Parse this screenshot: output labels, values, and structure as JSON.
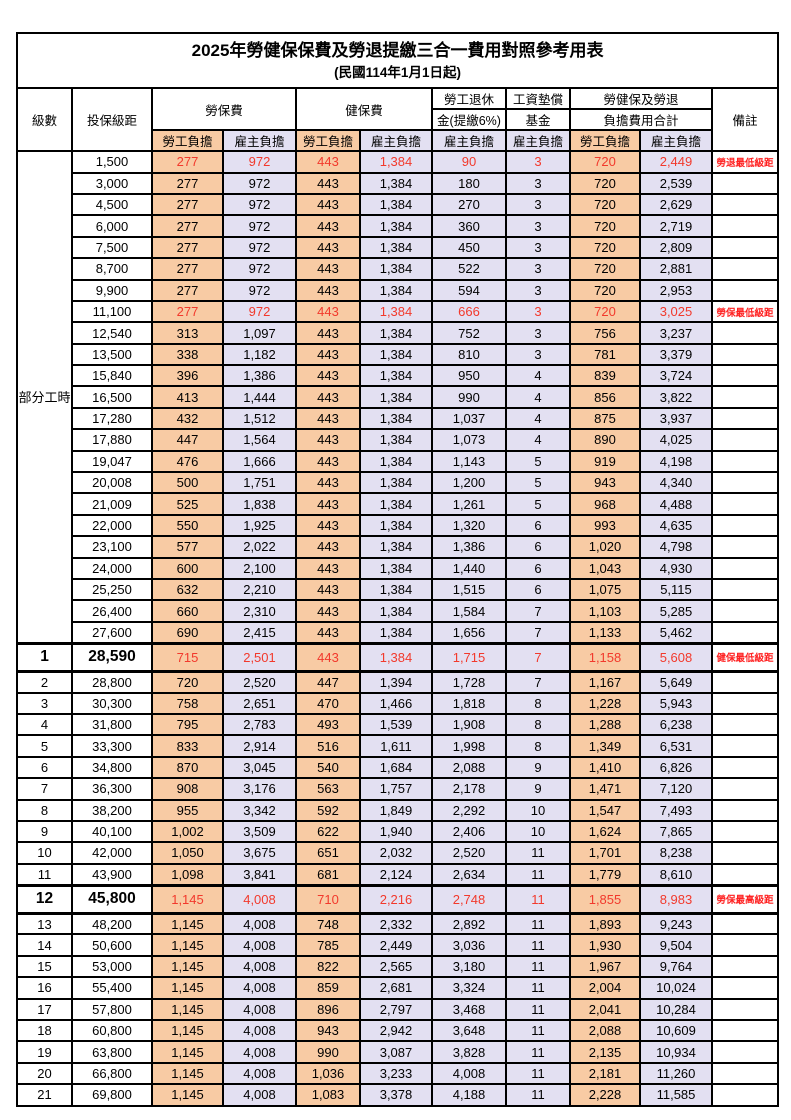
{
  "title": "2025年勞健保保費及勞退提繳三合一費用對照參考用表",
  "subtitle": "(民國114年1月1日起)",
  "colors": {
    "worker_bg": "#F8CBA4",
    "employer_bg": "#E3E0F2",
    "red_value": "#F2392C",
    "red_remark": "#FF2020"
  },
  "header": {
    "level": "級數",
    "bracket": "投保級距",
    "labor_insurance": "勞保費",
    "health_insurance": "健保費",
    "pension_line1": "勞工退休",
    "pension_line2": "金(提繳6%)",
    "wage_fund_line1": "工資墊償",
    "wage_fund_line2": "基金",
    "total_line1": "勞健保及勞退",
    "total_line2": "負擔費用合計",
    "remark": "備註",
    "worker_share": "勞工負擔",
    "employer_share": "雇主負擔"
  },
  "part_time_label": "部分工時",
  "rows": [
    {
      "level": "",
      "bracket": "1,500",
      "labor_w": "277",
      "labor_e": "972",
      "health_w": "443",
      "health_e": "1,384",
      "pension_e": "90",
      "fund_e": "3",
      "total_w": "720",
      "total_e": "2,449",
      "remark": "勞退最低級距",
      "red": true,
      "bold": false
    },
    {
      "level": "",
      "bracket": "3,000",
      "labor_w": "277",
      "labor_e": "972",
      "health_w": "443",
      "health_e": "1,384",
      "pension_e": "180",
      "fund_e": "3",
      "total_w": "720",
      "total_e": "2,539",
      "remark": "",
      "red": false,
      "bold": false
    },
    {
      "level": "",
      "bracket": "4,500",
      "labor_w": "277",
      "labor_e": "972",
      "health_w": "443",
      "health_e": "1,384",
      "pension_e": "270",
      "fund_e": "3",
      "total_w": "720",
      "total_e": "2,629",
      "remark": "",
      "red": false,
      "bold": false
    },
    {
      "level": "",
      "bracket": "6,000",
      "labor_w": "277",
      "labor_e": "972",
      "health_w": "443",
      "health_e": "1,384",
      "pension_e": "360",
      "fund_e": "3",
      "total_w": "720",
      "total_e": "2,719",
      "remark": "",
      "red": false,
      "bold": false
    },
    {
      "level": "",
      "bracket": "7,500",
      "labor_w": "277",
      "labor_e": "972",
      "health_w": "443",
      "health_e": "1,384",
      "pension_e": "450",
      "fund_e": "3",
      "total_w": "720",
      "total_e": "2,809",
      "remark": "",
      "red": false,
      "bold": false
    },
    {
      "level": "",
      "bracket": "8,700",
      "labor_w": "277",
      "labor_e": "972",
      "health_w": "443",
      "health_e": "1,384",
      "pension_e": "522",
      "fund_e": "3",
      "total_w": "720",
      "total_e": "2,881",
      "remark": "",
      "red": false,
      "bold": false
    },
    {
      "level": "",
      "bracket": "9,900",
      "labor_w": "277",
      "labor_e": "972",
      "health_w": "443",
      "health_e": "1,384",
      "pension_e": "594",
      "fund_e": "3",
      "total_w": "720",
      "total_e": "2,953",
      "remark": "",
      "red": false,
      "bold": false
    },
    {
      "level": "",
      "bracket": "11,100",
      "labor_w": "277",
      "labor_e": "972",
      "health_w": "443",
      "health_e": "1,384",
      "pension_e": "666",
      "fund_e": "3",
      "total_w": "720",
      "total_e": "3,025",
      "remark": "勞保最低級距",
      "red": true,
      "bold": false
    },
    {
      "level": "",
      "bracket": "12,540",
      "labor_w": "313",
      "labor_e": "1,097",
      "health_w": "443",
      "health_e": "1,384",
      "pension_e": "752",
      "fund_e": "3",
      "total_w": "756",
      "total_e": "3,237",
      "remark": "",
      "red": false,
      "bold": false
    },
    {
      "level": "",
      "bracket": "13,500",
      "labor_w": "338",
      "labor_e": "1,182",
      "health_w": "443",
      "health_e": "1,384",
      "pension_e": "810",
      "fund_e": "3",
      "total_w": "781",
      "total_e": "3,379",
      "remark": "",
      "red": false,
      "bold": false
    },
    {
      "level": "",
      "bracket": "15,840",
      "labor_w": "396",
      "labor_e": "1,386",
      "health_w": "443",
      "health_e": "1,384",
      "pension_e": "950",
      "fund_e": "4",
      "total_w": "839",
      "total_e": "3,724",
      "remark": "",
      "red": false,
      "bold": false
    },
    {
      "level": "",
      "bracket": "16,500",
      "labor_w": "413",
      "labor_e": "1,444",
      "health_w": "443",
      "health_e": "1,384",
      "pension_e": "990",
      "fund_e": "4",
      "total_w": "856",
      "total_e": "3,822",
      "remark": "",
      "red": false,
      "bold": false
    },
    {
      "level": "",
      "bracket": "17,280",
      "labor_w": "432",
      "labor_e": "1,512",
      "health_w": "443",
      "health_e": "1,384",
      "pension_e": "1,037",
      "fund_e": "4",
      "total_w": "875",
      "total_e": "3,937",
      "remark": "",
      "red": false,
      "bold": false
    },
    {
      "level": "",
      "bracket": "17,880",
      "labor_w": "447",
      "labor_e": "1,564",
      "health_w": "443",
      "health_e": "1,384",
      "pension_e": "1,073",
      "fund_e": "4",
      "total_w": "890",
      "total_e": "4,025",
      "remark": "",
      "red": false,
      "bold": false
    },
    {
      "level": "",
      "bracket": "19,047",
      "labor_w": "476",
      "labor_e": "1,666",
      "health_w": "443",
      "health_e": "1,384",
      "pension_e": "1,143",
      "fund_e": "5",
      "total_w": "919",
      "total_e": "4,198",
      "remark": "",
      "red": false,
      "bold": false
    },
    {
      "level": "",
      "bracket": "20,008",
      "labor_w": "500",
      "labor_e": "1,751",
      "health_w": "443",
      "health_e": "1,384",
      "pension_e": "1,200",
      "fund_e": "5",
      "total_w": "943",
      "total_e": "4,340",
      "remark": "",
      "red": false,
      "bold": false
    },
    {
      "level": "",
      "bracket": "21,009",
      "labor_w": "525",
      "labor_e": "1,838",
      "health_w": "443",
      "health_e": "1,384",
      "pension_e": "1,261",
      "fund_e": "5",
      "total_w": "968",
      "total_e": "4,488",
      "remark": "",
      "red": false,
      "bold": false
    },
    {
      "level": "",
      "bracket": "22,000",
      "labor_w": "550",
      "labor_e": "1,925",
      "health_w": "443",
      "health_e": "1,384",
      "pension_e": "1,320",
      "fund_e": "6",
      "total_w": "993",
      "total_e": "4,635",
      "remark": "",
      "red": false,
      "bold": false
    },
    {
      "level": "",
      "bracket": "23,100",
      "labor_w": "577",
      "labor_e": "2,022",
      "health_w": "443",
      "health_e": "1,384",
      "pension_e": "1,386",
      "fund_e": "6",
      "total_w": "1,020",
      "total_e": "4,798",
      "remark": "",
      "red": false,
      "bold": false
    },
    {
      "level": "",
      "bracket": "24,000",
      "labor_w": "600",
      "labor_e": "2,100",
      "health_w": "443",
      "health_e": "1,384",
      "pension_e": "1,440",
      "fund_e": "6",
      "total_w": "1,043",
      "total_e": "4,930",
      "remark": "",
      "red": false,
      "bold": false
    },
    {
      "level": "",
      "bracket": "25,250",
      "labor_w": "632",
      "labor_e": "2,210",
      "health_w": "443",
      "health_e": "1,384",
      "pension_e": "1,515",
      "fund_e": "6",
      "total_w": "1,075",
      "total_e": "5,115",
      "remark": "",
      "red": false,
      "bold": false
    },
    {
      "level": "",
      "bracket": "26,400",
      "labor_w": "660",
      "labor_e": "2,310",
      "health_w": "443",
      "health_e": "1,384",
      "pension_e": "1,584",
      "fund_e": "7",
      "total_w": "1,103",
      "total_e": "5,285",
      "remark": "",
      "red": false,
      "bold": false
    },
    {
      "level": "",
      "bracket": "27,600",
      "labor_w": "690",
      "labor_e": "2,415",
      "health_w": "443",
      "health_e": "1,384",
      "pension_e": "1,656",
      "fund_e": "7",
      "total_w": "1,133",
      "total_e": "5,462",
      "remark": "",
      "red": false,
      "bold": false
    },
    {
      "level": "1",
      "bracket": "28,590",
      "labor_w": "715",
      "labor_e": "2,501",
      "health_w": "443",
      "health_e": "1,384",
      "pension_e": "1,715",
      "fund_e": "7",
      "total_w": "1,158",
      "total_e": "5,608",
      "remark": "健保最低級距",
      "red": true,
      "bold": true
    },
    {
      "level": "2",
      "bracket": "28,800",
      "labor_w": "720",
      "labor_e": "2,520",
      "health_w": "447",
      "health_e": "1,394",
      "pension_e": "1,728",
      "fund_e": "7",
      "total_w": "1,167",
      "total_e": "5,649",
      "remark": "",
      "red": false,
      "bold": false
    },
    {
      "level": "3",
      "bracket": "30,300",
      "labor_w": "758",
      "labor_e": "2,651",
      "health_w": "470",
      "health_e": "1,466",
      "pension_e": "1,818",
      "fund_e": "8",
      "total_w": "1,228",
      "total_e": "5,943",
      "remark": "",
      "red": false,
      "bold": false
    },
    {
      "level": "4",
      "bracket": "31,800",
      "labor_w": "795",
      "labor_e": "2,783",
      "health_w": "493",
      "health_e": "1,539",
      "pension_e": "1,908",
      "fund_e": "8",
      "total_w": "1,288",
      "total_e": "6,238",
      "remark": "",
      "red": false,
      "bold": false
    },
    {
      "level": "5",
      "bracket": "33,300",
      "labor_w": "833",
      "labor_e": "2,914",
      "health_w": "516",
      "health_e": "1,611",
      "pension_e": "1,998",
      "fund_e": "8",
      "total_w": "1,349",
      "total_e": "6,531",
      "remark": "",
      "red": false,
      "bold": false
    },
    {
      "level": "6",
      "bracket": "34,800",
      "labor_w": "870",
      "labor_e": "3,045",
      "health_w": "540",
      "health_e": "1,684",
      "pension_e": "2,088",
      "fund_e": "9",
      "total_w": "1,410",
      "total_e": "6,826",
      "remark": "",
      "red": false,
      "bold": false
    },
    {
      "level": "7",
      "bracket": "36,300",
      "labor_w": "908",
      "labor_e": "3,176",
      "health_w": "563",
      "health_e": "1,757",
      "pension_e": "2,178",
      "fund_e": "9",
      "total_w": "1,471",
      "total_e": "7,120",
      "remark": "",
      "red": false,
      "bold": false
    },
    {
      "level": "8",
      "bracket": "38,200",
      "labor_w": "955",
      "labor_e": "3,342",
      "health_w": "592",
      "health_e": "1,849",
      "pension_e": "2,292",
      "fund_e": "10",
      "total_w": "1,547",
      "total_e": "7,493",
      "remark": "",
      "red": false,
      "bold": false
    },
    {
      "level": "9",
      "bracket": "40,100",
      "labor_w": "1,002",
      "labor_e": "3,509",
      "health_w": "622",
      "health_e": "1,940",
      "pension_e": "2,406",
      "fund_e": "10",
      "total_w": "1,624",
      "total_e": "7,865",
      "remark": "",
      "red": false,
      "bold": false
    },
    {
      "level": "10",
      "bracket": "42,000",
      "labor_w": "1,050",
      "labor_e": "3,675",
      "health_w": "651",
      "health_e": "2,032",
      "pension_e": "2,520",
      "fund_e": "11",
      "total_w": "1,701",
      "total_e": "8,238",
      "remark": "",
      "red": false,
      "bold": false
    },
    {
      "level": "11",
      "bracket": "43,900",
      "labor_w": "1,098",
      "labor_e": "3,841",
      "health_w": "681",
      "health_e": "2,124",
      "pension_e": "2,634",
      "fund_e": "11",
      "total_w": "1,779",
      "total_e": "8,610",
      "remark": "",
      "red": false,
      "bold": false
    },
    {
      "level": "12",
      "bracket": "45,800",
      "labor_w": "1,145",
      "labor_e": "4,008",
      "health_w": "710",
      "health_e": "2,216",
      "pension_e": "2,748",
      "fund_e": "11",
      "total_w": "1,855",
      "total_e": "8,983",
      "remark": "勞保最高級距",
      "red": true,
      "bold": true
    },
    {
      "level": "13",
      "bracket": "48,200",
      "labor_w": "1,145",
      "labor_e": "4,008",
      "health_w": "748",
      "health_e": "2,332",
      "pension_e": "2,892",
      "fund_e": "11",
      "total_w": "1,893",
      "total_e": "9,243",
      "remark": "",
      "red": false,
      "bold": false
    },
    {
      "level": "14",
      "bracket": "50,600",
      "labor_w": "1,145",
      "labor_e": "4,008",
      "health_w": "785",
      "health_e": "2,449",
      "pension_e": "3,036",
      "fund_e": "11",
      "total_w": "1,930",
      "total_e": "9,504",
      "remark": "",
      "red": false,
      "bold": false
    },
    {
      "level": "15",
      "bracket": "53,000",
      "labor_w": "1,145",
      "labor_e": "4,008",
      "health_w": "822",
      "health_e": "2,565",
      "pension_e": "3,180",
      "fund_e": "11",
      "total_w": "1,967",
      "total_e": "9,764",
      "remark": "",
      "red": false,
      "bold": false
    },
    {
      "level": "16",
      "bracket": "55,400",
      "labor_w": "1,145",
      "labor_e": "4,008",
      "health_w": "859",
      "health_e": "2,681",
      "pension_e": "3,324",
      "fund_e": "11",
      "total_w": "2,004",
      "total_e": "10,024",
      "remark": "",
      "red": false,
      "bold": false
    },
    {
      "level": "17",
      "bracket": "57,800",
      "labor_w": "1,145",
      "labor_e": "4,008",
      "health_w": "896",
      "health_e": "2,797",
      "pension_e": "3,468",
      "fund_e": "11",
      "total_w": "2,041",
      "total_e": "10,284",
      "remark": "",
      "red": false,
      "bold": false
    },
    {
      "level": "18",
      "bracket": "60,800",
      "labor_w": "1,145",
      "labor_e": "4,008",
      "health_w": "943",
      "health_e": "2,942",
      "pension_e": "3,648",
      "fund_e": "11",
      "total_w": "2,088",
      "total_e": "10,609",
      "remark": "",
      "red": false,
      "bold": false
    },
    {
      "level": "19",
      "bracket": "63,800",
      "labor_w": "1,145",
      "labor_e": "4,008",
      "health_w": "990",
      "health_e": "3,087",
      "pension_e": "3,828",
      "fund_e": "11",
      "total_w": "2,135",
      "total_e": "10,934",
      "remark": "",
      "red": false,
      "bold": false
    },
    {
      "level": "20",
      "bracket": "66,800",
      "labor_w": "1,145",
      "labor_e": "4,008",
      "health_w": "1,036",
      "health_e": "3,233",
      "pension_e": "4,008",
      "fund_e": "11",
      "total_w": "2,181",
      "total_e": "11,260",
      "remark": "",
      "red": false,
      "bold": false
    },
    {
      "level": "21",
      "bracket": "69,800",
      "labor_w": "1,145",
      "labor_e": "4,008",
      "health_w": "1,083",
      "health_e": "3,378",
      "pension_e": "4,188",
      "fund_e": "11",
      "total_w": "2,228",
      "total_e": "11,585",
      "remark": "",
      "red": false,
      "bold": false
    }
  ]
}
